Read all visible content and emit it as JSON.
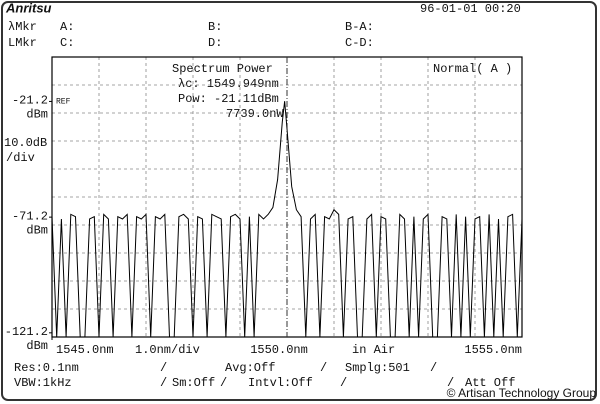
{
  "screen": {
    "logo": "Anritsu",
    "datetime": "96-01-01 00:20",
    "marker_rows": [
      {
        "label": "λMkr",
        "a": "A:",
        "b": "B:",
        "c": "B-A:"
      },
      {
        "label": "LMkr",
        "a": "C:",
        "b": "D:",
        "c": "C-D:"
      }
    ],
    "scale": "10.0dB",
    "scale_unit": "/div",
    "status_rows": [
      [
        "Res:0.1nm",
        "/",
        "Avg:Off",
        "/",
        "Smplg:501",
        "/"
      ],
      [
        "VBW:1kHz",
        "/",
        "Sm:Off",
        "/",
        "Intvl:Off",
        "/",
        "/",
        "Att Off"
      ]
    ],
    "watermark": "© Artisan Technology Group"
  },
  "chart_data": {
    "type": "line",
    "mode": "Normal( A )",
    "ref_label": "REF",
    "y_unit": "dBm",
    "x_div": "1.0nm/div",
    "medium": "in Air",
    "annotations": [
      "Spectrum Power",
      "λc: 1549.949nm",
      "Pow: -21.11dBm",
      "7739.0nW"
    ],
    "xlim": [
      1545,
      1555
    ],
    "xticks": [
      {
        "value": 1545,
        "label": "1545.0nm"
      },
      {
        "value": 1550,
        "label": "1550.0nm"
      },
      {
        "value": 1555,
        "label": "1555.0nm"
      }
    ],
    "ylim": [
      -123,
      -2
    ],
    "yticks": [
      -121.2,
      -71.2,
      -21.2
    ],
    "grid": true,
    "color": "#000000",
    "x": [
      1545.0,
      1545.1,
      1545.2,
      1545.3,
      1545.4,
      1545.5,
      1545.6,
      1545.7,
      1545.8,
      1545.9,
      1546.0,
      1546.1,
      1546.2,
      1546.3,
      1546.4,
      1546.5,
      1546.6,
      1546.7,
      1546.8,
      1546.9,
      1547.0,
      1547.1,
      1547.2,
      1547.3,
      1547.4,
      1547.5,
      1547.6,
      1547.7,
      1547.8,
      1547.9,
      1548.0,
      1548.1,
      1548.2,
      1548.3,
      1548.4,
      1548.5,
      1548.6,
      1548.7,
      1548.8,
      1548.9,
      1549.0,
      1549.1,
      1549.2,
      1549.3,
      1549.4,
      1549.5,
      1549.6,
      1549.7,
      1549.8,
      1549.9,
      1549.95,
      1550.0,
      1550.1,
      1550.2,
      1550.3,
      1550.4,
      1550.5,
      1550.6,
      1550.7,
      1550.8,
      1550.9,
      1551.0,
      1551.1,
      1551.2,
      1551.3,
      1551.4,
      1551.5,
      1551.6,
      1551.7,
      1551.8,
      1551.9,
      1552.0,
      1552.1,
      1552.2,
      1552.3,
      1552.4,
      1552.5,
      1552.6,
      1552.7,
      1552.8,
      1552.9,
      1553.0,
      1553.1,
      1553.2,
      1553.3,
      1553.4,
      1553.5,
      1553.6,
      1553.7,
      1553.8,
      1553.9,
      1554.0,
      1554.1,
      1554.2,
      1554.3,
      1554.4,
      1554.5,
      1554.6,
      1554.7,
      1554.8,
      1554.9,
      1555.0
    ],
    "values": [
      -71,
      -123,
      -72,
      -123,
      -70,
      -71,
      -123,
      -123,
      -72,
      -71,
      -123,
      -70,
      -72,
      -123,
      -71,
      -72,
      -70,
      -123,
      -71,
      -72,
      -70,
      -123,
      -71,
      -72,
      -70,
      -123,
      -123,
      -71,
      -70,
      -72,
      -123,
      -71,
      -72,
      -123,
      -70,
      -71,
      -72,
      -123,
      -71,
      -70,
      -72,
      -123,
      -71,
      -123,
      -70,
      -72,
      -70,
      -67,
      -55,
      -30,
      -21.11,
      -33,
      -58,
      -68,
      -71,
      -123,
      -72,
      -70,
      -123,
      -71,
      -72,
      -68,
      -70,
      -123,
      -72,
      -71,
      -123,
      -123,
      -72,
      -70,
      -123,
      -71,
      -72,
      -123,
      -123,
      -70,
      -72,
      -123,
      -71,
      -123,
      -72,
      -70,
      -123,
      -123,
      -71,
      -72,
      -123,
      -70,
      -123,
      -71,
      -123,
      -72,
      -71,
      -123,
      -70,
      -123,
      -72,
      -123,
      -71,
      -70,
      -123,
      -72
    ]
  }
}
